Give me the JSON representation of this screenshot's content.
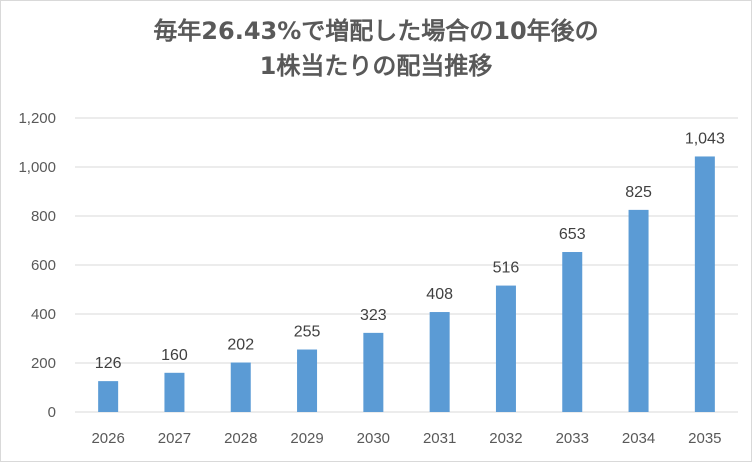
{
  "chart_data": {
    "type": "bar",
    "title_line1": "毎年26.43%で増配した場合の10年後の",
    "title_line2": "1株当たりの配当推移",
    "categories": [
      "2026",
      "2027",
      "2028",
      "2029",
      "2030",
      "2031",
      "2032",
      "2033",
      "2034",
      "2035"
    ],
    "values": [
      126,
      160,
      202,
      255,
      323,
      408,
      516,
      653,
      825,
      1043
    ],
    "value_labels": [
      "126",
      "160",
      "202",
      "255",
      "323",
      "408",
      "516",
      "653",
      "825",
      "1,043"
    ],
    "ylim": [
      0,
      1200
    ],
    "yticks": [
      0,
      200,
      400,
      600,
      800,
      1000,
      1200
    ],
    "ytick_labels": [
      "0",
      "200",
      "400",
      "600",
      "800",
      "1,000",
      "1,200"
    ],
    "grid": true,
    "bar_color": "#5b9bd5",
    "grid_color": "#d9d9d9"
  }
}
